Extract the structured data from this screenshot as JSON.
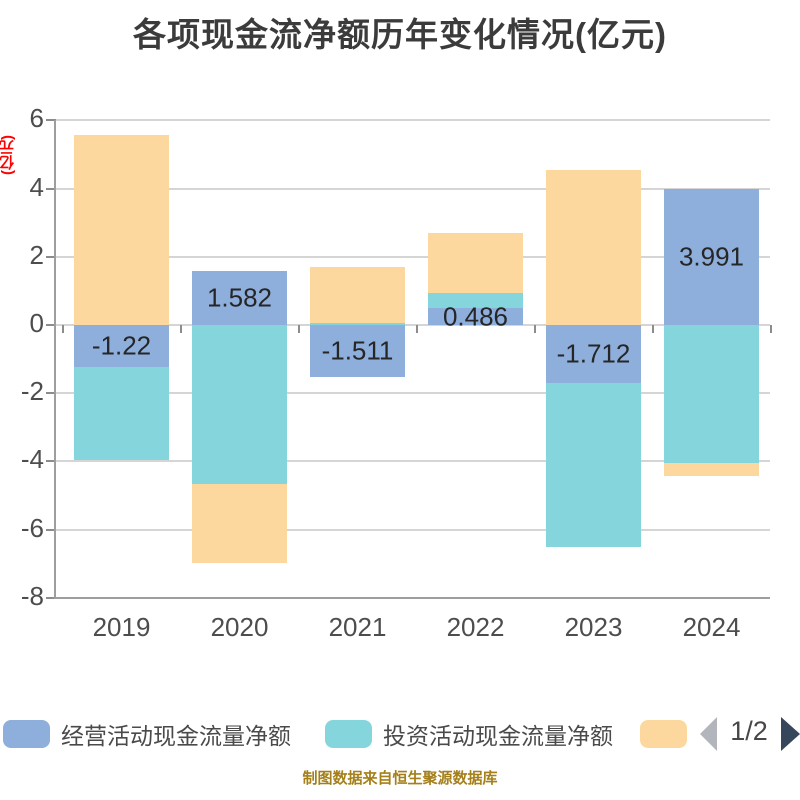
{
  "title": "各项现金流净额历年变化情况(亿元)",
  "y_axis_unit": "(亿元)",
  "footer": "制图数据来自恒生聚源数据库",
  "colors": {
    "grid": "#d5d5d5",
    "axis": "#9e9e9e",
    "tick": "#8c8c8c",
    "operating_blue": "#8eaedc",
    "investing_teal": "#85d6dc",
    "third_peach": "#fdd89e",
    "unit_label_red": "#ff0000",
    "footer_gold": "#a57f19",
    "pager_prev_gray": "#b2b6bc",
    "pager_next_dark": "#36475c"
  },
  "legend": {
    "items": [
      {
        "label": "经营活动现金流量净额",
        "color": "#8eaedc"
      },
      {
        "label": "投资活动现金流量净额",
        "color": "#85d6dc"
      },
      {
        "label": "",
        "color": "#fdd89e"
      }
    ],
    "pagination": "1/2"
  },
  "chart_data": {
    "type": "bar",
    "stacked": true,
    "title": "各项现金流净额历年变化情况(亿元)",
    "categories": [
      "2019",
      "2020",
      "2021",
      "2022",
      "2023",
      "2024"
    ],
    "series": [
      {
        "name": "经营活动现金流量净额",
        "color": "#8eaedc",
        "values": [
          -1.22,
          1.582,
          -1.511,
          0.486,
          -1.712,
          3.991
        ]
      },
      {
        "name": "投资活动现金流量净额",
        "color": "#85d6dc",
        "values": [
          -2.74,
          -4.67,
          0.05,
          0.44,
          -4.79,
          -4.06
        ]
      },
      {
        "name": "",
        "color": "#fdd89e",
        "values": [
          5.57,
          -2.31,
          1.64,
          1.77,
          4.54,
          -0.37
        ]
      }
    ],
    "data_labels": [
      "-1.22",
      "1.582",
      "-1.511",
      "0.486",
      "-1.712",
      "3.991"
    ],
    "ylabel": "(亿元)",
    "ylim": [
      -8,
      6
    ],
    "yticks": [
      6,
      4,
      2,
      0,
      -2,
      -4,
      -6,
      -8
    ],
    "grid": true,
    "legend_position": "bottom"
  }
}
